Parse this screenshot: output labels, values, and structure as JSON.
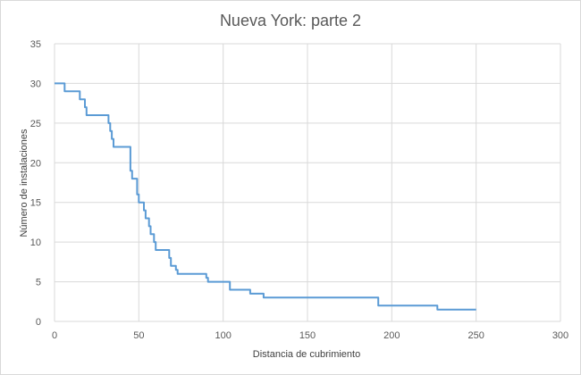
{
  "chart_data": {
    "type": "line",
    "title": "Nueva York: parte 2",
    "xlabel": "Distancia de cubrimiento",
    "ylabel": "Número  de instalaciones",
    "xlim": [
      0,
      300
    ],
    "ylim": [
      0,
      35
    ],
    "xticks": [
      0,
      50,
      100,
      150,
      200,
      250,
      300
    ],
    "yticks": [
      0,
      5,
      10,
      15,
      20,
      25,
      30,
      35
    ],
    "grid": true,
    "legend": "none",
    "series": [
      {
        "color": "#5b9bd5",
        "step": true,
        "points": [
          [
            0,
            30
          ],
          [
            6,
            30
          ],
          [
            6,
            29
          ],
          [
            15,
            29
          ],
          [
            15,
            28
          ],
          [
            18,
            28
          ],
          [
            18,
            27
          ],
          [
            19,
            27
          ],
          [
            19,
            26
          ],
          [
            32,
            26
          ],
          [
            32,
            25
          ],
          [
            33,
            25
          ],
          [
            33,
            24
          ],
          [
            34,
            24
          ],
          [
            34,
            23
          ],
          [
            35,
            23
          ],
          [
            35,
            22
          ],
          [
            45,
            22
          ],
          [
            45,
            19
          ],
          [
            46,
            19
          ],
          [
            46,
            18
          ],
          [
            49,
            18
          ],
          [
            49,
            16
          ],
          [
            50,
            16
          ],
          [
            50,
            15
          ],
          [
            53,
            15
          ],
          [
            53,
            14
          ],
          [
            54,
            14
          ],
          [
            54,
            13
          ],
          [
            56,
            13
          ],
          [
            56,
            12
          ],
          [
            57,
            12
          ],
          [
            57,
            11
          ],
          [
            59,
            11
          ],
          [
            59,
            10
          ],
          [
            60,
            10
          ],
          [
            60,
            9
          ],
          [
            68,
            9
          ],
          [
            68,
            8
          ],
          [
            69,
            8
          ],
          [
            69,
            7
          ],
          [
            72,
            7
          ],
          [
            72,
            6.5
          ],
          [
            73,
            6.5
          ],
          [
            73,
            6
          ],
          [
            90,
            6
          ],
          [
            90,
            5.5
          ],
          [
            91,
            5.5
          ],
          [
            91,
            5
          ],
          [
            104,
            5
          ],
          [
            104,
            4
          ],
          [
            116,
            4
          ],
          [
            116,
            3.5
          ],
          [
            124,
            3.5
          ],
          [
            124,
            3
          ],
          [
            192,
            3
          ],
          [
            192,
            2
          ],
          [
            227,
            2
          ],
          [
            227,
            1.5
          ],
          [
            250,
            1.5
          ]
        ]
      }
    ]
  }
}
